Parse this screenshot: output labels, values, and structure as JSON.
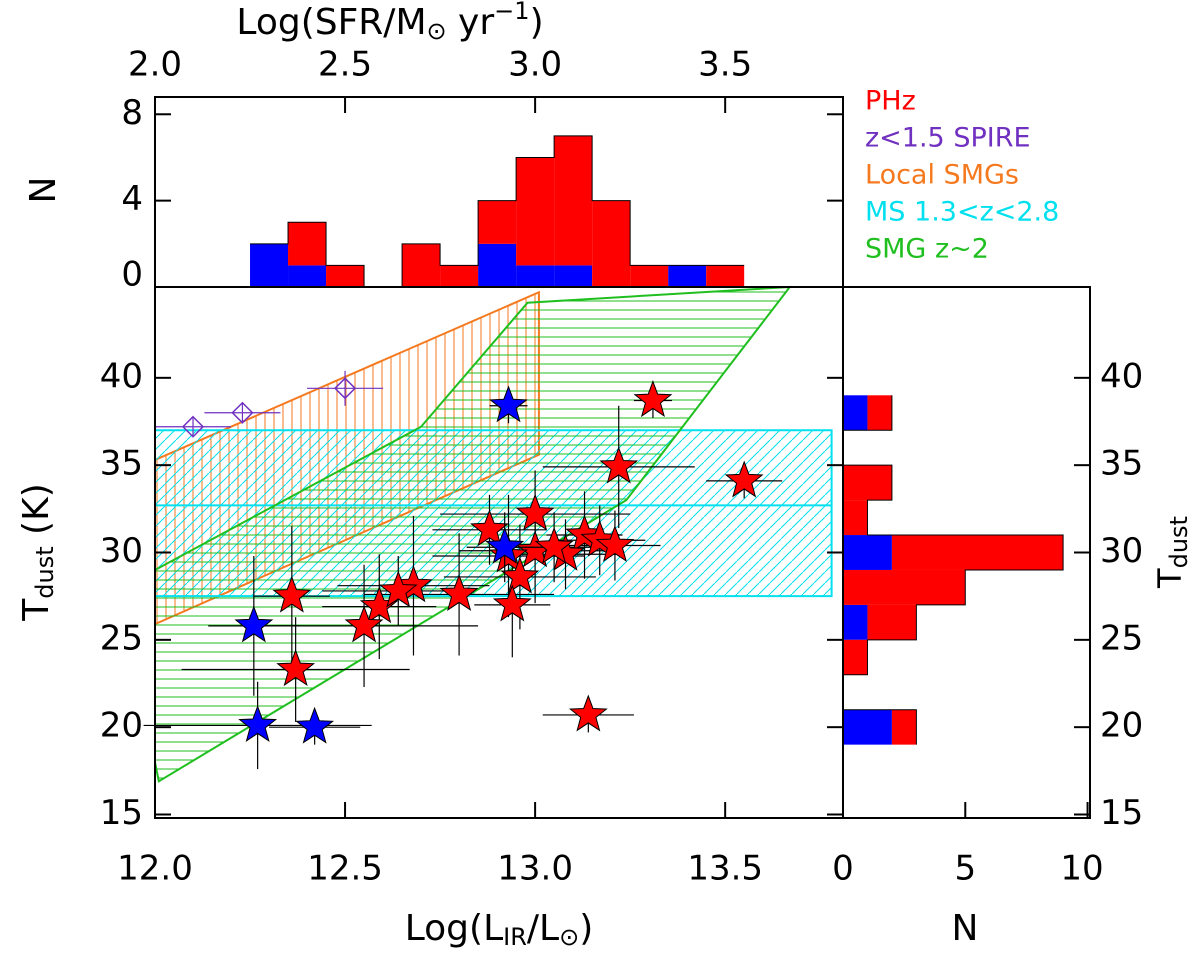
{
  "chart_data": [
    {
      "type": "scatter",
      "xlabel": [
        "Log(L",
        "IR",
        "/L",
        "⊙",
        ")"
      ],
      "ylabel": [
        "T",
        "dust",
        "  (K)"
      ],
      "xlim": [
        12,
        13.81
      ],
      "ylim": [
        14.8,
        45.2
      ],
      "xticks": [
        {
          "value": 12,
          "label": "12.0"
        },
        {
          "value": 12.5,
          "label": "12.5"
        },
        {
          "value": 13,
          "label": "13.0"
        },
        {
          "value": 13.5,
          "label": "13.5"
        }
      ],
      "yticks": [
        15,
        20,
        25,
        30,
        35,
        40
      ],
      "series": [
        {
          "name": "PHz",
          "color": "#ff0000",
          "marker": "star",
          "x": [
            13.31,
            13.22,
            13.55,
            13.0,
            12.88,
            13.13,
            13.17,
            13.0,
            12.93,
            13.08,
            13.21,
            12.96,
            12.68,
            12.59,
            12.8,
            12.36,
            12.55,
            12.37,
            12.94,
            13.14,
            13.05,
            12.64
          ],
          "values": [
            38.7,
            34.9,
            34.1,
            32.2,
            31.3,
            31.0,
            30.7,
            30.1,
            29.8,
            29.9,
            30.4,
            28.6,
            28.1,
            26.9,
            27.6,
            27.5,
            25.8,
            23.3,
            27.0,
            20.7,
            30.3,
            27.8
          ],
          "xerr": [
            0.05,
            0.2,
            0.1,
            0.25,
            0.15,
            0.1,
            0.12,
            0.2,
            0.2,
            0.15,
            0.12,
            0.2,
            0.2,
            0.15,
            0.25,
            0.1,
            0.3,
            0.3,
            0.1,
            0.12,
            0.1,
            0.2
          ],
          "yerr": [
            1.0,
            3.5,
            1.0,
            2.5,
            2.0,
            2.5,
            2.0,
            3.0,
            3.5,
            2.0,
            2.0,
            3.0,
            4.0,
            3.0,
            3.5,
            4.0,
            3.5,
            3.0,
            3.0,
            1.0,
            2.0,
            2.0
          ]
        },
        {
          "color": "#0000ff",
          "marker": "star",
          "x": [
            12.93,
            12.92,
            12.26,
            12.27,
            12.42
          ],
          "values": [
            38.4,
            30.3,
            25.8,
            20.1,
            20.0
          ],
          "xerr": [
            0.05,
            0.1,
            0.12,
            0.3,
            0.12
          ],
          "yerr": [
            1.0,
            2.0,
            4.0,
            2.5,
            1.0
          ]
        },
        {
          "name": "z<1.5 SPIRE",
          "color": "#7030c0",
          "marker": "diamond",
          "x": [
            12.1,
            12.23,
            12.5
          ],
          "values": [
            37.2,
            38.0,
            39.4
          ],
          "xerr": [
            0.1,
            0.1,
            0.1
          ],
          "yerr": [
            0.5,
            0.6,
            1.0
          ]
        }
      ],
      "regions": [
        {
          "name": "Local SMGs",
          "color": "#f57a1f",
          "hatch": "vertical",
          "points": [
            [
              12.0,
              35.3
            ],
            [
              13.01,
              44.9
            ],
            [
              13.01,
              35.6
            ],
            [
              12.0,
              25.9
            ]
          ]
        },
        {
          "name": "MS 1.3<z<2.8",
          "color": "#00e0ee",
          "hatch": "diagonal",
          "points": [
            [
              12.0,
              27.5
            ],
            [
              13.78,
              27.5
            ],
            [
              13.78,
              37.0
            ],
            [
              12.0,
              37.0
            ]
          ],
          "center": 32.7
        },
        {
          "name": "SMG z~2",
          "color": "#1fbf1f",
          "hatch": "horizontal",
          "points": [
            [
              12.0,
              29.0
            ],
            [
              12.7,
              37.2
            ],
            [
              12.98,
              44.3
            ],
            [
              13.67,
              45.2
            ],
            [
              13.24,
              33.0
            ],
            [
              12.01,
              16.9
            ],
            [
              12.0,
              18.0
            ]
          ]
        }
      ]
    },
    {
      "type": "histogram",
      "bins": [
        12.25,
        12.35,
        12.45,
        12.55,
        12.65,
        12.75,
        12.85,
        12.95,
        13.05,
        13.15,
        13.25,
        13.35,
        13.45,
        13.55
      ],
      "series": [
        {
          "color": "#0000ff",
          "values": [
            2,
            1,
            0,
            0,
            0,
            0,
            2,
            1,
            1,
            0,
            0,
            1,
            0
          ]
        },
        {
          "color": "#ff0000",
          "values": [
            0,
            2,
            1,
            0,
            2,
            1,
            2,
            5,
            6,
            4,
            1,
            0,
            1
          ]
        }
      ],
      "ylim": [
        0,
        8.8
      ],
      "yticks": [
        0,
        4,
        8
      ],
      "ylabel": "N",
      "x2label": [
        "Log(SFR/M",
        "⊙",
        " yr",
        "−1",
        ")"
      ],
      "x2lim": [
        2.0,
        3.81
      ],
      "x2ticks": [
        {
          "value": 2,
          "label": "2.0"
        },
        {
          "value": 2.5,
          "label": "2.5"
        },
        {
          "value": 3,
          "label": "3.0"
        },
        {
          "value": 3.5,
          "label": "3.5"
        }
      ]
    },
    {
      "type": "histogram",
      "orientation": "horizontal",
      "bins": [
        19,
        21,
        23,
        25,
        27,
        29,
        31,
        33,
        35,
        37,
        39
      ],
      "series": [
        {
          "color": "#0000ff",
          "values": [
            2,
            0,
            0,
            1,
            0,
            2,
            0,
            0,
            0,
            1
          ]
        },
        {
          "color": "#ff0000",
          "values": [
            1,
            0,
            1,
            2,
            5,
            7,
            1,
            2,
            0,
            1
          ]
        }
      ],
      "xlim": [
        0,
        10.1
      ],
      "xticks": [
        0,
        5,
        10
      ],
      "xlabel": "N",
      "ylabel": [
        "T",
        "dust"
      ]
    }
  ]
}
